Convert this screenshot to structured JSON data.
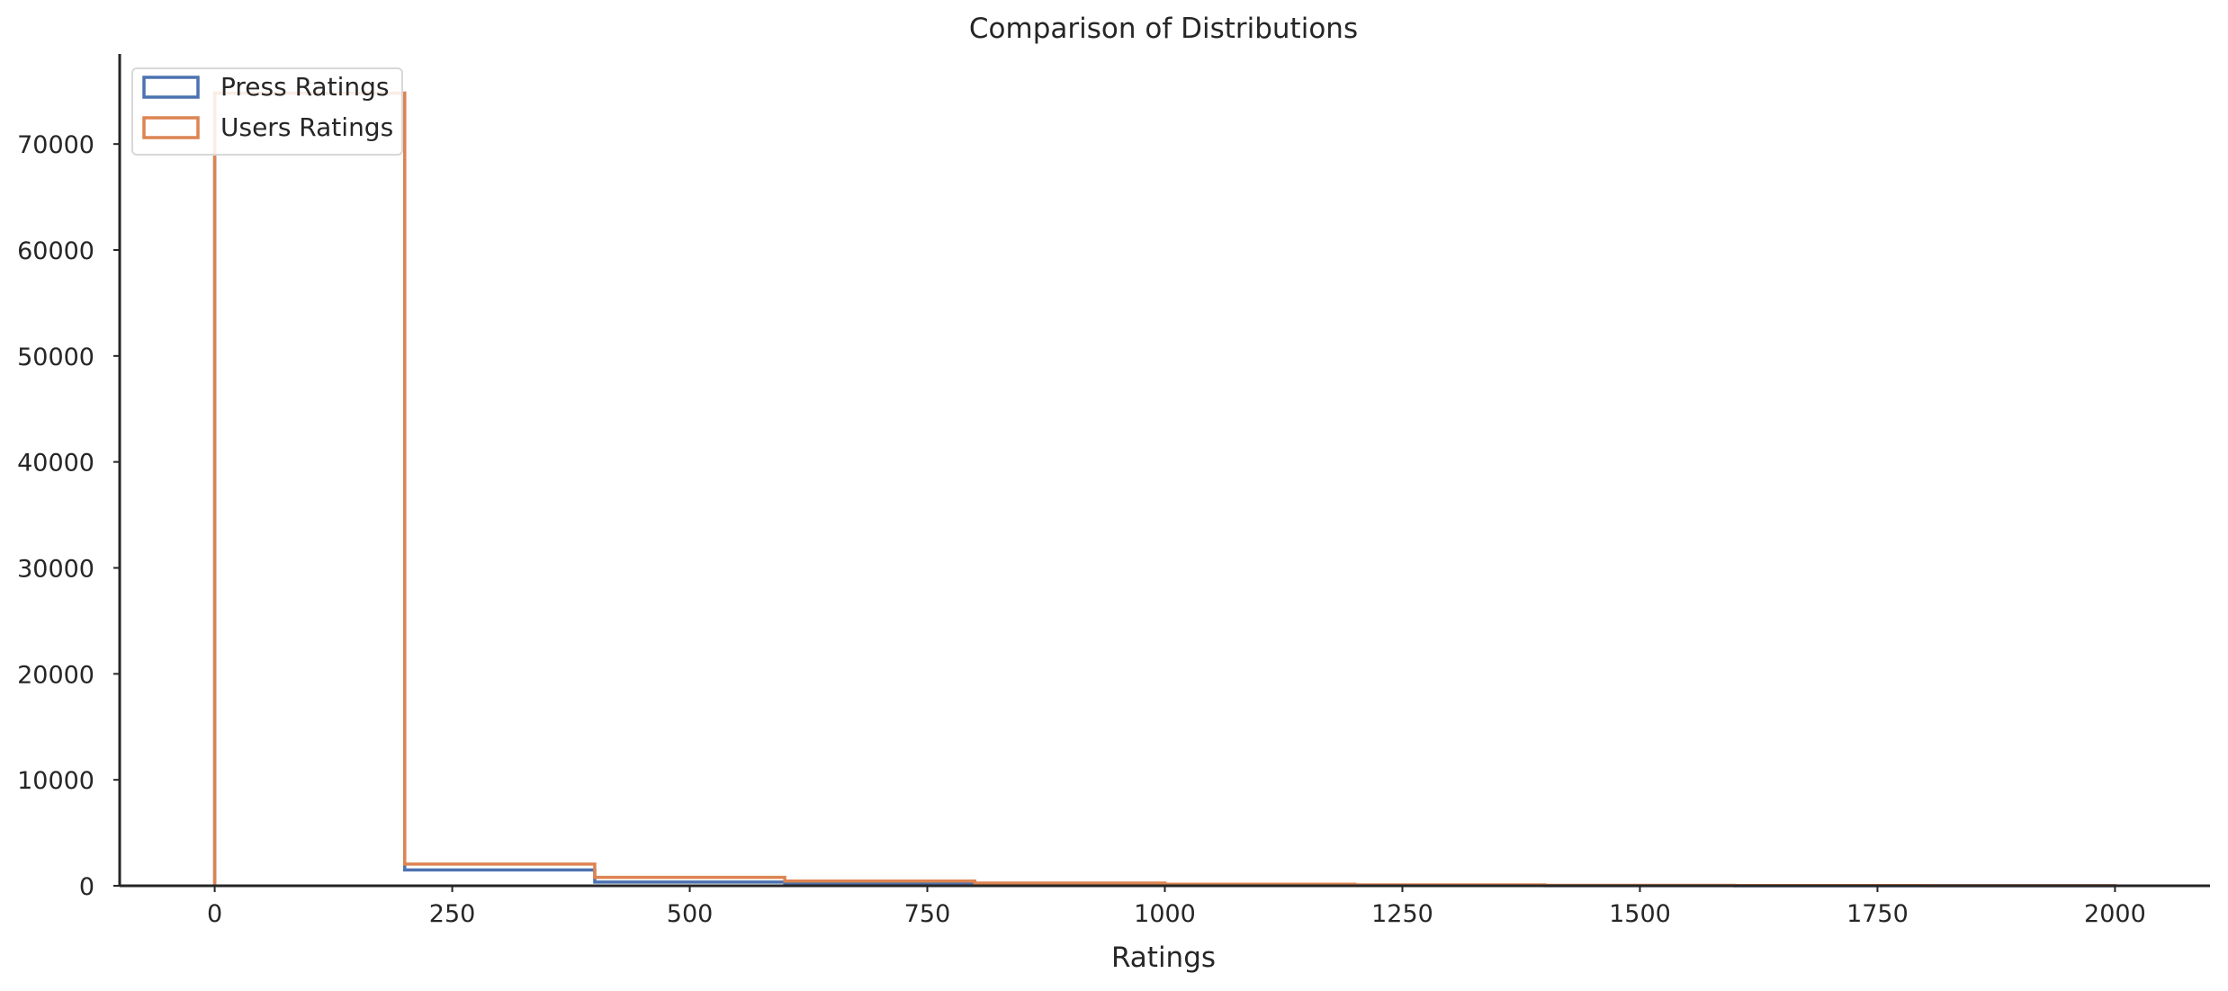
{
  "chart_data": {
    "type": "histogram-step",
    "title": "Comparison of Distributions",
    "xlabel": "Ratings",
    "ylabel": "",
    "xlim": [
      -100,
      2100
    ],
    "ylim": [
      0,
      78500
    ],
    "x_ticks": [
      0,
      250,
      500,
      750,
      1000,
      1250,
      1500,
      1750,
      2000
    ],
    "y_ticks": [
      0,
      10000,
      20000,
      30000,
      40000,
      50000,
      60000,
      70000
    ],
    "grid": false,
    "legend_position": "upper-left",
    "bin_edges": [
      0,
      200,
      400,
      600,
      800,
      1000,
      1200,
      1400,
      1600,
      1800,
      2000
    ],
    "series": [
      {
        "name": "Press Ratings",
        "color": "#4c72b0",
        "values": [
          74800,
          1500,
          350,
          150,
          80,
          40,
          20,
          10,
          5,
          3
        ]
      },
      {
        "name": "Users Ratings",
        "color": "#dd8452",
        "values": [
          74800,
          2050,
          800,
          450,
          250,
          150,
          80,
          40,
          25,
          15
        ]
      }
    ]
  }
}
